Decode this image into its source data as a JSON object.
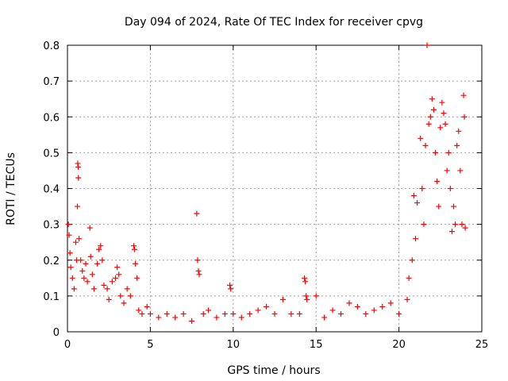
{
  "chart_data": {
    "type": "scatter",
    "title": "Day 094 of 2024, Rate Of TEC Index for receiver cpvg",
    "xlabel": "GPS time / hours",
    "ylabel": "ROTI / TECUs",
    "xlim": [
      0,
      25
    ],
    "ylim": [
      0,
      0.8
    ],
    "xticks": [
      0,
      5,
      10,
      15,
      20,
      25
    ],
    "yticks": [
      0,
      0.1,
      0.2,
      0.3,
      0.4,
      0.5,
      0.6,
      0.7,
      0.8
    ],
    "grid": true,
    "marker": "+",
    "color": "#ff0000",
    "series": [
      {
        "points": [
          [
            0.05,
            0.3
          ],
          [
            0.1,
            0.27
          ],
          [
            0.15,
            0.22
          ],
          [
            0.2,
            0.18
          ],
          [
            0.3,
            0.15
          ],
          [
            0.4,
            0.12
          ],
          [
            0.5,
            0.25
          ],
          [
            0.55,
            0.2
          ],
          [
            0.6,
            0.35
          ],
          [
            0.62,
            0.47
          ],
          [
            0.65,
            0.46
          ],
          [
            0.66,
            0.43
          ],
          [
            0.7,
            0.26
          ],
          [
            0.8,
            0.2
          ],
          [
            0.9,
            0.17
          ],
          [
            1.0,
            0.15
          ],
          [
            1.1,
            0.19
          ],
          [
            1.2,
            0.14
          ],
          [
            1.35,
            0.29
          ],
          [
            1.4,
            0.21
          ],
          [
            1.5,
            0.16
          ],
          [
            1.6,
            0.12
          ],
          [
            1.8,
            0.19
          ],
          [
            1.9,
            0.23
          ],
          [
            2.0,
            0.24
          ],
          [
            2.1,
            0.2
          ],
          [
            2.2,
            0.13
          ],
          [
            2.4,
            0.12
          ],
          [
            2.5,
            0.09
          ],
          [
            2.7,
            0.14
          ],
          [
            2.9,
            0.15
          ],
          [
            3.0,
            0.18
          ],
          [
            3.1,
            0.16
          ],
          [
            3.2,
            0.1
          ],
          [
            3.4,
            0.08
          ],
          [
            3.6,
            0.12
          ],
          [
            3.8,
            0.1
          ],
          [
            4.0,
            0.24
          ],
          [
            4.05,
            0.23
          ],
          [
            4.1,
            0.19
          ],
          [
            4.2,
            0.15
          ],
          [
            4.3,
            0.06
          ],
          [
            4.5,
            0.05
          ],
          [
            4.8,
            0.07
          ],
          [
            5.0,
            0.05
          ],
          [
            5.5,
            0.04
          ],
          [
            6.0,
            0.05
          ],
          [
            6.5,
            0.04
          ],
          [
            7.0,
            0.05
          ],
          [
            7.5,
            0.03
          ],
          [
            7.8,
            0.33
          ],
          [
            7.85,
            0.2
          ],
          [
            7.9,
            0.17
          ],
          [
            7.95,
            0.16
          ],
          [
            8.2,
            0.05
          ],
          [
            8.5,
            0.06
          ],
          [
            9.0,
            0.04
          ],
          [
            9.5,
            0.05
          ],
          [
            9.8,
            0.13
          ],
          [
            9.85,
            0.12
          ],
          [
            10.0,
            0.05
          ],
          [
            10.5,
            0.04
          ],
          [
            11.0,
            0.05
          ],
          [
            11.5,
            0.06
          ],
          [
            12.0,
            0.07
          ],
          [
            12.5,
            0.05
          ],
          [
            13.0,
            0.09
          ],
          [
            13.5,
            0.05
          ],
          [
            14.0,
            0.05
          ],
          [
            14.3,
            0.15
          ],
          [
            14.35,
            0.14
          ],
          [
            14.4,
            0.1
          ],
          [
            14.45,
            0.09
          ],
          [
            15.0,
            0.1
          ],
          [
            15.5,
            0.04
          ],
          [
            16.0,
            0.06
          ],
          [
            16.5,
            0.05
          ],
          [
            17.0,
            0.08
          ],
          [
            17.5,
            0.07
          ],
          [
            18.0,
            0.05
          ],
          [
            18.5,
            0.06
          ],
          [
            19.0,
            0.07
          ],
          [
            19.5,
            0.08
          ],
          [
            20.0,
            0.05
          ],
          [
            20.5,
            0.09
          ],
          [
            20.6,
            0.15
          ],
          [
            20.8,
            0.2
          ],
          [
            20.9,
            0.38
          ],
          [
            21.0,
            0.26
          ],
          [
            21.1,
            0.36
          ],
          [
            21.3,
            0.54
          ],
          [
            21.4,
            0.4
          ],
          [
            21.5,
            0.3
          ],
          [
            21.6,
            0.52
          ],
          [
            21.7,
            0.8
          ],
          [
            21.8,
            0.58
          ],
          [
            21.9,
            0.6
          ],
          [
            22.0,
            0.65
          ],
          [
            22.1,
            0.62
          ],
          [
            22.2,
            0.5
          ],
          [
            22.3,
            0.42
          ],
          [
            22.4,
            0.35
          ],
          [
            22.5,
            0.57
          ],
          [
            22.6,
            0.64
          ],
          [
            22.7,
            0.61
          ],
          [
            22.8,
            0.58
          ],
          [
            22.9,
            0.45
          ],
          [
            23.0,
            0.5
          ],
          [
            23.1,
            0.4
          ],
          [
            23.2,
            0.28
          ],
          [
            23.3,
            0.35
          ],
          [
            23.4,
            0.3
          ],
          [
            23.5,
            0.52
          ],
          [
            23.6,
            0.56
          ],
          [
            23.7,
            0.45
          ],
          [
            23.8,
            0.3
          ],
          [
            23.9,
            0.66
          ],
          [
            23.95,
            0.6
          ],
          [
            24.0,
            0.29
          ]
        ]
      }
    ]
  }
}
